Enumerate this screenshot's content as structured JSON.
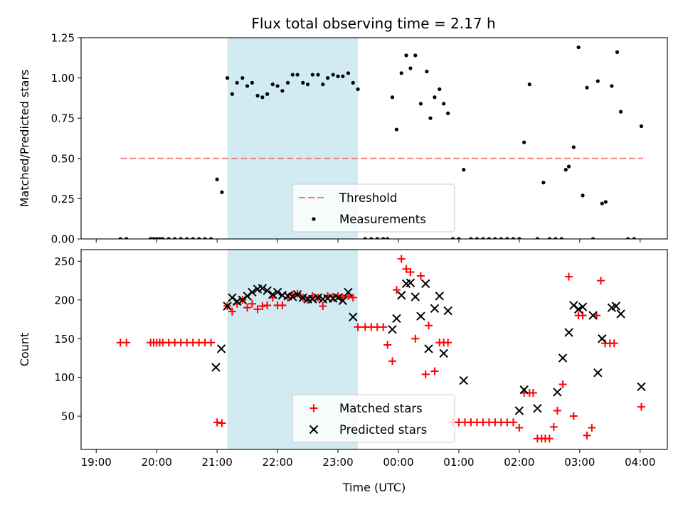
{
  "figure": {
    "title": "Flux total observing time = 2.17 h"
  },
  "colors": {
    "band": "#add8e6",
    "threshold": "#f08080",
    "measurement": "#000000",
    "matched": "#ff0000",
    "predicted": "#000000"
  },
  "chart_data": [
    {
      "type": "scatter",
      "ylabel": "Matched/Predicted stars",
      "xlabel": "",
      "xlim": [
        -0.25,
        9.45
      ],
      "ylim": [
        0,
        1.25
      ],
      "xticks": [
        0,
        1,
        2,
        3,
        4,
        5,
        6,
        7,
        8,
        9
      ],
      "xtick_labels": [],
      "yticks": [
        0,
        0.25,
        0.5,
        0.75,
        1.0,
        1.25
      ],
      "ytick_labels": [
        "0.00",
        "0.25",
        "0.50",
        "0.75",
        "1.00",
        "1.25"
      ],
      "shaded_span": [
        2.17,
        4.33
      ],
      "threshold": {
        "name": "Threshold",
        "value": 0.5,
        "x_range": [
          0.4,
          9.05
        ]
      },
      "legend": {
        "position": "lower center",
        "entries": [
          "Threshold",
          "Measurements"
        ]
      },
      "series": [
        {
          "name": "Measurements",
          "points": [
            [
              0.4,
              0
            ],
            [
              0.5,
              0
            ],
            [
              0.9,
              0
            ],
            [
              0.95,
              0
            ],
            [
              1.0,
              0
            ],
            [
              1.05,
              0
            ],
            [
              1.1,
              0
            ],
            [
              1.2,
              0
            ],
            [
              1.3,
              0
            ],
            [
              1.4,
              0
            ],
            [
              1.5,
              0
            ],
            [
              1.6,
              0
            ],
            [
              1.7,
              0
            ],
            [
              1.8,
              0
            ],
            [
              1.9,
              0
            ],
            [
              2.0,
              0.37
            ],
            [
              2.08,
              0.29
            ],
            [
              2.17,
              1.0
            ],
            [
              2.25,
              0.9
            ],
            [
              2.33,
              0.97
            ],
            [
              2.42,
              1.0
            ],
            [
              2.5,
              0.95
            ],
            [
              2.58,
              0.97
            ],
            [
              2.67,
              0.89
            ],
            [
              2.75,
              0.88
            ],
            [
              2.83,
              0.9
            ],
            [
              2.92,
              0.96
            ],
            [
              3.0,
              0.95
            ],
            [
              3.08,
              0.92
            ],
            [
              3.17,
              0.97
            ],
            [
              3.25,
              1.02
            ],
            [
              3.33,
              1.02
            ],
            [
              3.42,
              0.97
            ],
            [
              3.5,
              0.96
            ],
            [
              3.58,
              1.02
            ],
            [
              3.67,
              1.02
            ],
            [
              3.75,
              0.96
            ],
            [
              3.83,
              1.0
            ],
            [
              3.92,
              1.02
            ],
            [
              4.0,
              1.01
            ],
            [
              4.08,
              1.01
            ],
            [
              4.17,
              1.03
            ],
            [
              4.25,
              0.97
            ],
            [
              4.33,
              0.93
            ],
            [
              4.45,
              0
            ],
            [
              4.55,
              0
            ],
            [
              4.65,
              0
            ],
            [
              4.75,
              0
            ],
            [
              4.82,
              0
            ],
            [
              4.9,
              0.88
            ],
            [
              4.97,
              0.68
            ],
            [
              5.05,
              1.03
            ],
            [
              5.13,
              1.14
            ],
            [
              5.2,
              1.06
            ],
            [
              5.28,
              1.14
            ],
            [
              5.37,
              0.84
            ],
            [
              5.47,
              1.04
            ],
            [
              5.53,
              0.75
            ],
            [
              5.6,
              0.88
            ],
            [
              5.68,
              0.93
            ],
            [
              5.75,
              0.84
            ],
            [
              5.82,
              0.78
            ],
            [
              5.9,
              0
            ],
            [
              6.0,
              0
            ],
            [
              6.08,
              0.43
            ],
            [
              6.2,
              0
            ],
            [
              6.3,
              0
            ],
            [
              6.4,
              0
            ],
            [
              6.5,
              0
            ],
            [
              6.6,
              0
            ],
            [
              6.7,
              0
            ],
            [
              6.8,
              0
            ],
            [
              6.9,
              0
            ],
            [
              7.0,
              0
            ],
            [
              7.08,
              0.6
            ],
            [
              7.17,
              0.96
            ],
            [
              7.3,
              0
            ],
            [
              7.4,
              0.35
            ],
            [
              7.5,
              0
            ],
            [
              7.6,
              0
            ],
            [
              7.7,
              0
            ],
            [
              7.77,
              0.43
            ],
            [
              7.82,
              0.45
            ],
            [
              7.9,
              0.57
            ],
            [
              7.98,
              1.19
            ],
            [
              8.05,
              0.27
            ],
            [
              8.12,
              0.94
            ],
            [
              8.22,
              0
            ],
            [
              8.3,
              0.98
            ],
            [
              8.37,
              0.22
            ],
            [
              8.43,
              0.23
            ],
            [
              8.53,
              0.95
            ],
            [
              8.62,
              1.16
            ],
            [
              8.68,
              0.79
            ],
            [
              8.8,
              0
            ],
            [
              8.9,
              0
            ],
            [
              9.02,
              0.7
            ]
          ]
        }
      ]
    },
    {
      "type": "scatter",
      "ylabel": "Count",
      "xlabel": "Time (UTC)",
      "xlim": [
        -0.25,
        9.45
      ],
      "ylim": [
        7,
        265
      ],
      "xticks": [
        0,
        1,
        2,
        3,
        4,
        5,
        6,
        7,
        8,
        9
      ],
      "xtick_labels": [
        "19:00",
        "20:00",
        "21:00",
        "22:00",
        "23:00",
        "00:00",
        "01:00",
        "02:00",
        "03:00",
        "04:00"
      ],
      "yticks": [
        50,
        100,
        150,
        200,
        250
      ],
      "ytick_labels": [
        "50",
        "100",
        "150",
        "200",
        "250"
      ],
      "shaded_span": [
        2.17,
        4.33
      ],
      "legend": {
        "position": "lower center",
        "entries": [
          "Matched stars",
          "Predicted stars"
        ]
      },
      "series": [
        {
          "name": "Matched stars",
          "marker": "+",
          "points": [
            [
              0.4,
              145
            ],
            [
              0.5,
              145
            ],
            [
              0.9,
              145
            ],
            [
              0.95,
              145
            ],
            [
              1.0,
              145
            ],
            [
              1.05,
              145
            ],
            [
              1.1,
              145
            ],
            [
              1.2,
              145
            ],
            [
              1.3,
              145
            ],
            [
              1.4,
              145
            ],
            [
              1.5,
              145
            ],
            [
              1.6,
              145
            ],
            [
              1.7,
              145
            ],
            [
              1.8,
              145
            ],
            [
              1.9,
              145
            ],
            [
              2.0,
              42
            ],
            [
              2.08,
              41
            ],
            [
              2.17,
              192
            ],
            [
              2.25,
              185
            ],
            [
              2.33,
              195
            ],
            [
              2.42,
              200
            ],
            [
              2.5,
              190
            ],
            [
              2.58,
              195
            ],
            [
              2.67,
              188
            ],
            [
              2.75,
              192
            ],
            [
              2.83,
              193
            ],
            [
              2.92,
              203
            ],
            [
              3.0,
              193
            ],
            [
              3.08,
              193
            ],
            [
              3.17,
              203
            ],
            [
              3.25,
              207
            ],
            [
              3.33,
              208
            ],
            [
              3.42,
              203
            ],
            [
              3.5,
              200
            ],
            [
              3.58,
              205
            ],
            [
              3.67,
              203
            ],
            [
              3.75,
              192
            ],
            [
              3.83,
              205
            ],
            [
              3.92,
              204
            ],
            [
              4.0,
              205
            ],
            [
              4.08,
              203
            ],
            [
              4.17,
              205
            ],
            [
              4.25,
              203
            ],
            [
              4.33,
              165
            ],
            [
              4.45,
              165
            ],
            [
              4.55,
              165
            ],
            [
              4.65,
              165
            ],
            [
              4.75,
              165
            ],
            [
              4.82,
              142
            ],
            [
              4.9,
              121
            ],
            [
              4.97,
              213
            ],
            [
              5.05,
              253
            ],
            [
              5.13,
              240
            ],
            [
              5.2,
              236
            ],
            [
              5.28,
              150
            ],
            [
              5.37,
              231
            ],
            [
              5.45,
              104
            ],
            [
              5.5,
              167
            ],
            [
              5.6,
              108
            ],
            [
              5.68,
              145
            ],
            [
              5.75,
              145
            ],
            [
              5.82,
              145
            ],
            [
              5.9,
              42
            ],
            [
              6.0,
              42
            ],
            [
              6.1,
              42
            ],
            [
              6.2,
              42
            ],
            [
              6.3,
              42
            ],
            [
              6.4,
              42
            ],
            [
              6.5,
              42
            ],
            [
              6.6,
              42
            ],
            [
              6.7,
              42
            ],
            [
              6.8,
              42
            ],
            [
              6.9,
              42
            ],
            [
              7.0,
              35
            ],
            [
              7.08,
              80
            ],
            [
              7.17,
              80
            ],
            [
              7.23,
              80
            ],
            [
              7.3,
              21
            ],
            [
              7.37,
              21
            ],
            [
              7.43,
              21
            ],
            [
              7.5,
              21
            ],
            [
              7.57,
              36
            ],
            [
              7.63,
              57
            ],
            [
              7.72,
              91
            ],
            [
              7.82,
              230
            ],
            [
              7.9,
              50
            ],
            [
              7.98,
              180
            ],
            [
              8.05,
              180
            ],
            [
              8.12,
              25
            ],
            [
              8.2,
              35
            ],
            [
              8.28,
              180
            ],
            [
              8.35,
              225
            ],
            [
              8.42,
              144
            ],
            [
              8.5,
              144
            ],
            [
              8.57,
              144
            ],
            [
              9.02,
              62
            ]
          ]
        },
        {
          "name": "Predicted stars",
          "marker": "x",
          "points": [
            [
              1.98,
              113
            ],
            [
              2.07,
              137
            ],
            [
              2.17,
              192
            ],
            [
              2.25,
              203
            ],
            [
              2.33,
              198
            ],
            [
              2.42,
              200
            ],
            [
              2.5,
              205
            ],
            [
              2.58,
              210
            ],
            [
              2.67,
              214
            ],
            [
              2.75,
              215
            ],
            [
              2.83,
              212
            ],
            [
              2.92,
              207
            ],
            [
              3.0,
              210
            ],
            [
              3.08,
              206
            ],
            [
              3.17,
              205
            ],
            [
              3.25,
              204
            ],
            [
              3.33,
              207
            ],
            [
              3.42,
              203
            ],
            [
              3.5,
              201
            ],
            [
              3.58,
              201
            ],
            [
              3.67,
              203
            ],
            [
              3.75,
              201
            ],
            [
              3.83,
              202
            ],
            [
              3.92,
              202
            ],
            [
              4.0,
              203
            ],
            [
              4.08,
              199
            ],
            [
              4.17,
              210
            ],
            [
              4.25,
              178
            ],
            [
              4.9,
              162
            ],
            [
              4.97,
              176
            ],
            [
              5.05,
              206
            ],
            [
              5.13,
              221
            ],
            [
              5.2,
              222
            ],
            [
              5.28,
              204
            ],
            [
              5.37,
              179
            ],
            [
              5.45,
              221
            ],
            [
              5.5,
              137
            ],
            [
              5.6,
              189
            ],
            [
              5.68,
              205
            ],
            [
              5.75,
              131
            ],
            [
              5.82,
              186
            ],
            [
              6.08,
              96
            ],
            [
              7.0,
              57
            ],
            [
              7.08,
              84
            ],
            [
              7.3,
              60
            ],
            [
              7.63,
              81
            ],
            [
              7.72,
              125
            ],
            [
              7.82,
              158
            ],
            [
              7.9,
              193
            ],
            [
              7.98,
              188
            ],
            [
              8.05,
              191
            ],
            [
              8.22,
              180
            ],
            [
              8.3,
              106
            ],
            [
              8.37,
              150
            ],
            [
              8.53,
              190
            ],
            [
              8.6,
              192
            ],
            [
              8.68,
              182
            ],
            [
              9.02,
              88
            ]
          ]
        }
      ]
    }
  ]
}
